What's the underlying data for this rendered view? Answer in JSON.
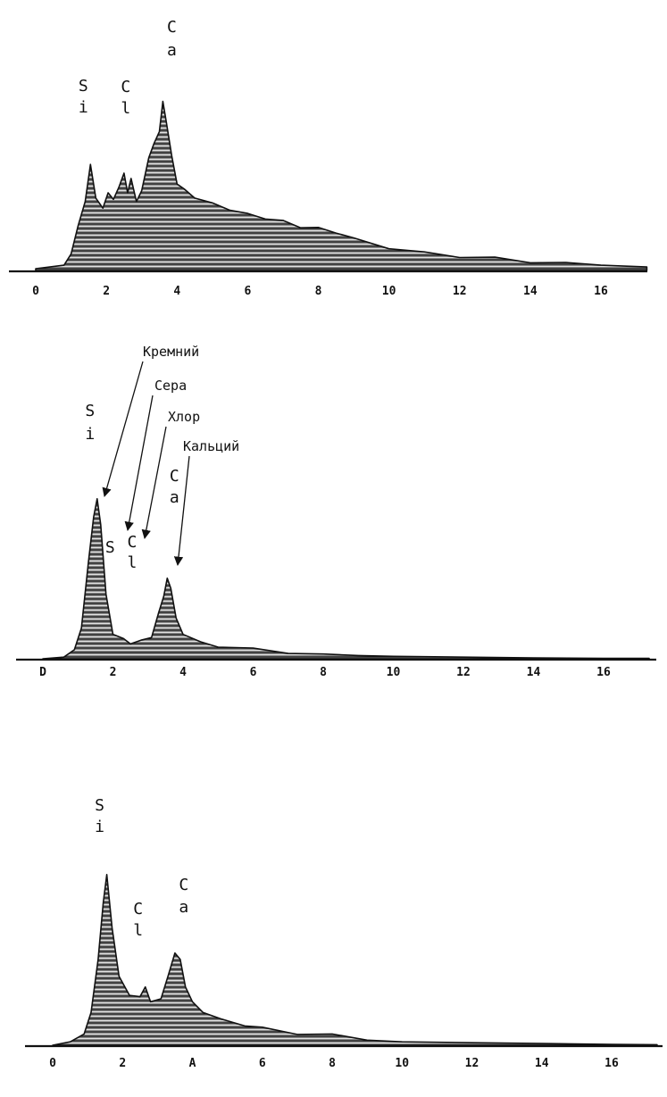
{
  "chart_data": [
    {
      "type": "area",
      "xlim": [
        0,
        17.3
      ],
      "ylim": [
        0,
        100
      ],
      "grid": false,
      "x_ticks": [
        "0",
        "2",
        "4",
        "6",
        "8",
        "10",
        "12",
        "14",
        "16"
      ],
      "x": [
        0,
        0.4,
        0.8,
        1.0,
        1.2,
        1.4,
        1.55,
        1.7,
        1.9,
        2.05,
        2.2,
        2.35,
        2.5,
        2.6,
        2.7,
        2.85,
        3.0,
        3.2,
        3.35,
        3.5,
        3.6,
        3.7,
        3.85,
        4.0,
        4.2,
        4.5,
        5.0,
        5.5,
        6.0,
        6.5,
        7.0,
        7.5,
        8.0,
        8.5,
        9.0,
        10.0,
        11.0,
        12.0,
        13.0,
        14.0,
        15.0,
        16.0,
        17.3
      ],
      "values": [
        1,
        2,
        3,
        10,
        25,
        40,
        60,
        42,
        35,
        45,
        40,
        48,
        55,
        45,
        52,
        40,
        45,
        65,
        72,
        80,
        96,
        85,
        65,
        50,
        46,
        42,
        38,
        35,
        32,
        30,
        28,
        25,
        24,
        22,
        18,
        13,
        10,
        8,
        7,
        5,
        4,
        3,
        2
      ],
      "annotations": [
        {
          "text": "Si",
          "x": 1.6
        },
        {
          "text": "Cl",
          "x": 2.7
        },
        {
          "text": "Ca",
          "x": 3.7
        }
      ]
    },
    {
      "type": "area",
      "xlim": [
        0,
        17.3
      ],
      "ylim": [
        0,
        100
      ],
      "grid": false,
      "x_ticks": [
        "D",
        "2",
        "4",
        "6",
        "8",
        "10",
        "12",
        "14",
        "16"
      ],
      "x": [
        0,
        0.6,
        0.9,
        1.1,
        1.3,
        1.45,
        1.55,
        1.65,
        1.8,
        2.0,
        2.3,
        2.5,
        2.8,
        3.1,
        3.3,
        3.45,
        3.55,
        3.65,
        3.8,
        4.0,
        4.5,
        5.0,
        6.0,
        7.0,
        8.0,
        9.0,
        10.0,
        12.0,
        14.0,
        16.0,
        17.3
      ],
      "values": [
        0,
        1,
        5,
        20,
        60,
        90,
        100,
        85,
        40,
        16,
        12,
        10,
        11,
        14,
        28,
        40,
        50,
        45,
        25,
        16,
        10,
        8,
        6,
        4,
        3,
        2,
        1.5,
        1,
        0.5,
        0.3,
        0.2
      ],
      "annotations": [
        {
          "text": "Si",
          "x": 1.6
        },
        {
          "text": "S",
          "x": 2.3
        },
        {
          "text": "Cl",
          "x": 2.7
        },
        {
          "text": "Ca",
          "x": 3.6
        }
      ],
      "callouts": [
        {
          "text": "Кремний",
          "points_to": "Si"
        },
        {
          "text": "Сера",
          "points_to": "S"
        },
        {
          "text": "Хлор",
          "points_to": "Cl"
        },
        {
          "text": "Кальций",
          "points_to": "Ca"
        }
      ]
    },
    {
      "type": "area",
      "xlim": [
        0,
        17.3
      ],
      "ylim": [
        0,
        100
      ],
      "grid": false,
      "x_ticks": [
        "0",
        "2",
        "A",
        "6",
        "8",
        "10",
        "12",
        "14",
        "16"
      ],
      "x": [
        0,
        0.5,
        0.9,
        1.1,
        1.3,
        1.45,
        1.55,
        1.7,
        1.9,
        2.2,
        2.5,
        2.65,
        2.8,
        3.1,
        3.3,
        3.5,
        3.65,
        3.8,
        4.0,
        4.3,
        4.8,
        5.5,
        6.0,
        7.0,
        8.0,
        9.0,
        10.0,
        12.0,
        14.0,
        16.0,
        17.3
      ],
      "values": [
        0,
        2,
        6,
        20,
        50,
        85,
        100,
        70,
        40,
        30,
        28,
        35,
        25,
        28,
        40,
        55,
        50,
        35,
        25,
        20,
        15,
        12,
        10,
        7,
        6,
        3,
        2,
        1.5,
        1,
        0.5,
        0.3
      ],
      "annotations": [
        {
          "text": "Si",
          "x": 1.6
        },
        {
          "text": "Cl",
          "x": 2.6
        },
        {
          "text": "Ca",
          "x": 3.6
        }
      ]
    }
  ]
}
